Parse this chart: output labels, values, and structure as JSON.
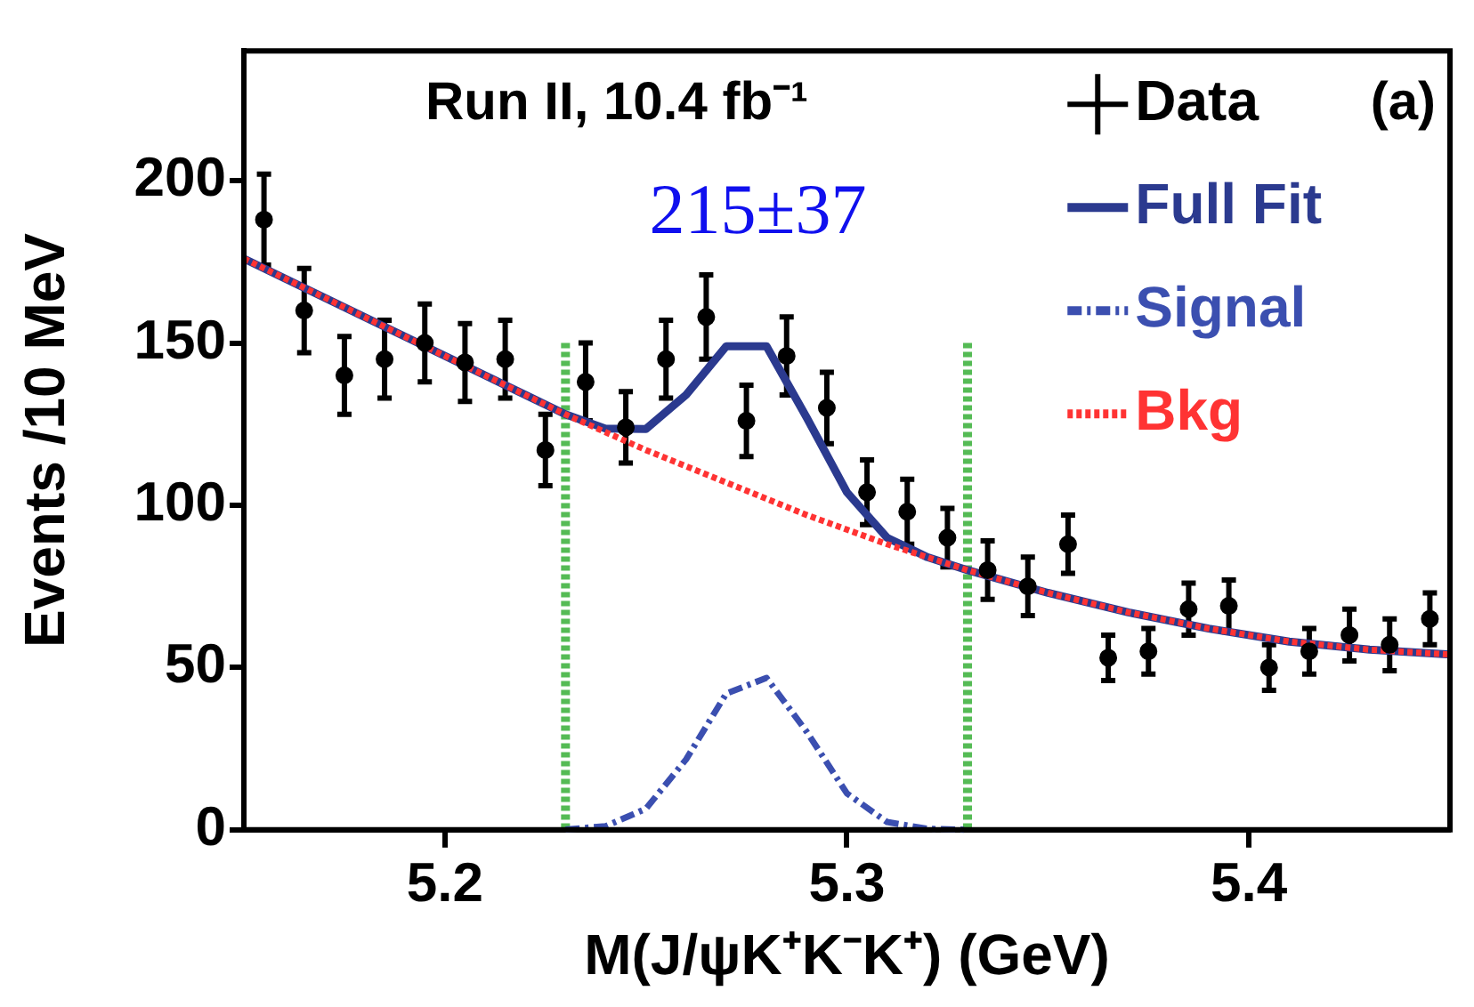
{
  "chart_data": {
    "type": "scatter",
    "xlabel": "M(J/ψK⁺K⁻K⁺) (GeV)",
    "ylabel": "Events /10 MeV",
    "annotations": [
      "Run II, 10.4 fb⁻¹",
      "(a)",
      "215±37"
    ],
    "xlim": [
      5.15,
      5.45
    ],
    "xticks": [
      5.2,
      5.3,
      5.4
    ],
    "ylim": [
      0,
      240
    ],
    "yticks": [
      0,
      50,
      100,
      150,
      200
    ],
    "grid": false,
    "legend": "top right",
    "series": [
      {
        "name": "Data",
        "type": "scatter",
        "marker": "circle",
        "color": "#000000",
        "x": [
          5.155,
          5.165,
          5.175,
          5.185,
          5.195,
          5.205,
          5.215,
          5.225,
          5.235,
          5.245,
          5.255,
          5.265,
          5.275,
          5.285,
          5.295,
          5.305,
          5.315,
          5.325,
          5.335,
          5.345,
          5.355,
          5.365,
          5.375,
          5.385,
          5.395,
          5.405,
          5.415,
          5.425,
          5.435,
          5.445
        ],
        "values": [
          188,
          160,
          140,
          145,
          150,
          144,
          145,
          117,
          138,
          124,
          145,
          158,
          126,
          146,
          130,
          104,
          98,
          90,
          80,
          75,
          88,
          53,
          55,
          68,
          69,
          50,
          55,
          60,
          57,
          65
        ],
        "errors": [
          14,
          13,
          12,
          12,
          12,
          12,
          12,
          11,
          12,
          11,
          12,
          13,
          11,
          12,
          11,
          10,
          10,
          9,
          9,
          9,
          9,
          7,
          7,
          8,
          8,
          7,
          7,
          8,
          8,
          8
        ]
      },
      {
        "name": "Full Fit",
        "type": "line",
        "marker": "none",
        "color": "#2b3a8f",
        "line_style": "solid",
        "x": [
          5.15,
          5.17,
          5.19,
          5.21,
          5.22,
          5.23,
          5.24,
          5.25,
          5.26,
          5.27,
          5.28,
          5.29,
          5.3,
          5.31,
          5.32,
          5.33,
          5.35,
          5.37,
          5.39,
          5.41,
          5.43,
          5.45
        ],
        "values": [
          176,
          164,
          152,
          140,
          134,
          128,
          123.6,
          123.5,
          134,
          149,
          149,
          127,
          104,
          90,
          84,
          80,
          73,
          67,
          62,
          58,
          55.5,
          54
        ]
      },
      {
        "name": "Signal",
        "type": "line",
        "marker": "none",
        "color": "#3b4fb0",
        "line_style": "dashed",
        "x": [
          5.23,
          5.24,
          5.25,
          5.26,
          5.27,
          5.28,
          5.29,
          5.3,
          5.31,
          5.32,
          5.33
        ],
        "values": [
          0.1,
          1.1,
          6.5,
          21.7,
          42,
          46.8,
          30.2,
          11.2,
          2.4,
          0.3,
          0
        ]
      },
      {
        "name": "Bkg",
        "type": "line",
        "marker": "none",
        "color": "#ff3333",
        "line_style": "dotted",
        "x": [
          5.15,
          5.17,
          5.19,
          5.21,
          5.23,
          5.25,
          5.27,
          5.29,
          5.31,
          5.33,
          5.35,
          5.37,
          5.39,
          5.41,
          5.43,
          5.45
        ],
        "values": [
          176,
          164,
          152,
          140,
          128,
          117,
          107,
          97,
          88,
          80,
          73,
          67,
          62,
          58,
          55.5,
          54
        ]
      }
    ],
    "ref_lines": [
      {
        "axis": "x",
        "value": 5.23,
        "color": "#55bb55",
        "line_style": "dotted"
      },
      {
        "axis": "x",
        "value": 5.33,
        "color": "#55bb55",
        "line_style": "dotted"
      }
    ]
  }
}
